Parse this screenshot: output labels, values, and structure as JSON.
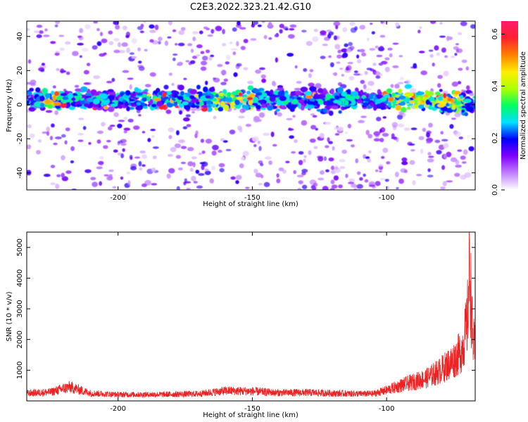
{
  "title": "C2E3.2022.323.21.42.G10",
  "chart_data": [
    {
      "type": "heatmap",
      "xlabel": "Height of straight line (km)",
      "ylabel": "Frequency (Hz)",
      "xlim": [
        -234,
        -67
      ],
      "ylim": [
        -50,
        49
      ],
      "xticks": [
        -200,
        -150,
        -100
      ],
      "yticks": [
        -40,
        -20,
        0,
        20,
        40
      ],
      "colorbar": {
        "label": "Normalized spectral amplitude",
        "range": [
          0.0,
          0.65
        ],
        "ticks": [
          0.0,
          0.2,
          0.4,
          0.6
        ],
        "tick_labels": [
          "0.0",
          "0.2",
          "0.4",
          "0.6"
        ],
        "colors": [
          "#ffffff",
          "#c080ff",
          "#8000ff",
          "#0000ff",
          "#00e0ff",
          "#00ff60",
          "#b0ff00",
          "#ffee00",
          "#ff8000",
          "#ff2030",
          "#ff1a6e"
        ]
      },
      "band": {
        "center_frequency_hz": 3,
        "width_hz": 9,
        "peak_amplitude": 0.6,
        "strong_x_ranges": [
          [
            -228,
            -220
          ],
          [
            -165,
            -150
          ],
          [
            -100,
            -70
          ]
        ]
      }
    },
    {
      "type": "line",
      "xlabel": "Height of straight line (km)",
      "ylabel": "SNR (10 * v/v)",
      "xlim": [
        -234,
        -67
      ],
      "ylim": [
        0,
        5500
      ],
      "xticks": [
        -200,
        -150,
        -100
      ],
      "yticks": [
        1000,
        2000,
        3000,
        4000,
        5000
      ],
      "series": [
        {
          "color": "#ee2222",
          "x": [
            -234,
            -225,
            -218,
            -210,
            -200,
            -190,
            -180,
            -170,
            -160,
            -150,
            -140,
            -130,
            -120,
            -110,
            -105,
            -100,
            -95,
            -90,
            -85,
            -80,
            -75,
            -72,
            -70,
            -69,
            -68,
            -67
          ],
          "y": [
            300,
            350,
            550,
            300,
            250,
            250,
            260,
            280,
            400,
            380,
            320,
            330,
            300,
            280,
            280,
            420,
            600,
            750,
            900,
            1200,
            1600,
            2000,
            3000,
            5300,
            2500,
            2000
          ]
        }
      ]
    }
  ]
}
